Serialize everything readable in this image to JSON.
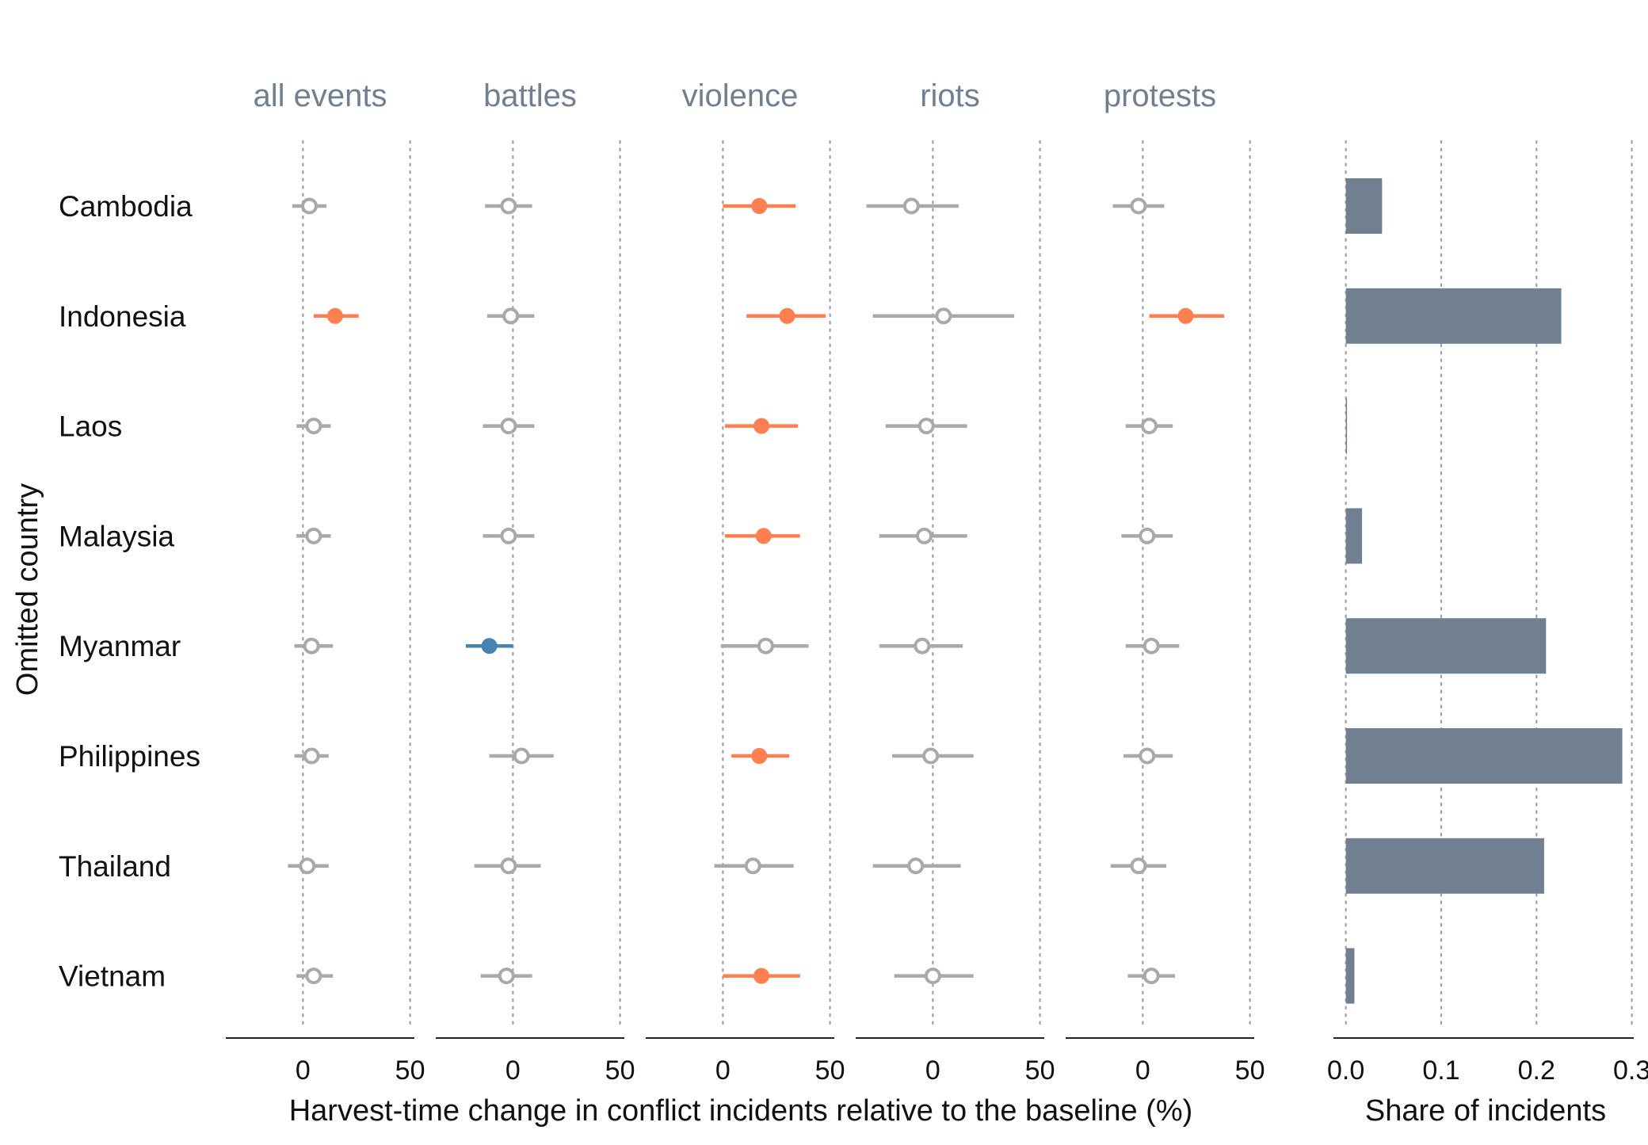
{
  "chart_data": [
    {
      "type": "scatter",
      "description_type": "dot-and-whisker",
      "xlabel": "Harvest-time change in conflict incidents relative to the baseline (%)",
      "ylabel": "Omitted country",
      "categories": [
        "Cambodia",
        "Indonesia",
        "Laos",
        "Malaysia",
        "Myanmar",
        "Philippines",
        "Thailand",
        "Vietnam"
      ],
      "xticks": [
        "0",
        "50"
      ],
      "xtick_values": [
        0,
        50
      ],
      "xlim": [
        -36,
        52
      ],
      "grid": "dotted vertical at 0 and 50",
      "colors": {
        "not_significant": "#A9A9A9",
        "positive_significant": "#FF7F50",
        "negative_significant": "#4682B4",
        "panel_title": "#708090"
      },
      "panels": [
        {
          "title": "all events",
          "points": [
            {
              "country": "Cambodia",
              "estimate": 3,
              "low": -5,
              "high": 11,
              "status": "not_significant"
            },
            {
              "country": "Indonesia",
              "estimate": 15,
              "low": 5,
              "high": 26,
              "status": "positive_significant"
            },
            {
              "country": "Laos",
              "estimate": 5,
              "low": -3,
              "high": 13,
              "status": "not_significant"
            },
            {
              "country": "Malaysia",
              "estimate": 5,
              "low": -3,
              "high": 13,
              "status": "not_significant"
            },
            {
              "country": "Myanmar",
              "estimate": 4,
              "low": -4,
              "high": 14,
              "status": "not_significant"
            },
            {
              "country": "Philippines",
              "estimate": 4,
              "low": -4,
              "high": 12,
              "status": "not_significant"
            },
            {
              "country": "Thailand",
              "estimate": 2,
              "low": -7,
              "high": 12,
              "status": "not_significant"
            },
            {
              "country": "Vietnam",
              "estimate": 5,
              "low": -3,
              "high": 14,
              "status": "not_significant"
            }
          ]
        },
        {
          "title": "battles",
          "points": [
            {
              "country": "Cambodia",
              "estimate": -2,
              "low": -13,
              "high": 9,
              "status": "not_significant"
            },
            {
              "country": "Indonesia",
              "estimate": -1,
              "low": -12,
              "high": 10,
              "status": "not_significant"
            },
            {
              "country": "Laos",
              "estimate": -2,
              "low": -14,
              "high": 10,
              "status": "not_significant"
            },
            {
              "country": "Malaysia",
              "estimate": -2,
              "low": -14,
              "high": 10,
              "status": "not_significant"
            },
            {
              "country": "Myanmar",
              "estimate": -11,
              "low": -22,
              "high": 0,
              "status": "negative_significant"
            },
            {
              "country": "Philippines",
              "estimate": 4,
              "low": -11,
              "high": 19,
              "status": "not_significant"
            },
            {
              "country": "Thailand",
              "estimate": -2,
              "low": -18,
              "high": 13,
              "status": "not_significant"
            },
            {
              "country": "Vietnam",
              "estimate": -3,
              "low": -15,
              "high": 9,
              "status": "not_significant"
            }
          ]
        },
        {
          "title": "violence",
          "points": [
            {
              "country": "Cambodia",
              "estimate": 17,
              "low": 0,
              "high": 34,
              "status": "positive_significant"
            },
            {
              "country": "Indonesia",
              "estimate": 30,
              "low": 11,
              "high": 48,
              "status": "positive_significant"
            },
            {
              "country": "Laos",
              "estimate": 18,
              "low": 1,
              "high": 35,
              "status": "positive_significant"
            },
            {
              "country": "Malaysia",
              "estimate": 19,
              "low": 1,
              "high": 36,
              "status": "positive_significant"
            },
            {
              "country": "Myanmar",
              "estimate": 20,
              "low": -1,
              "high": 40,
              "status": "not_significant"
            },
            {
              "country": "Philippines",
              "estimate": 17,
              "low": 4,
              "high": 31,
              "status": "positive_significant"
            },
            {
              "country": "Thailand",
              "estimate": 14,
              "low": -4,
              "high": 33,
              "status": "not_significant"
            },
            {
              "country": "Vietnam",
              "estimate": 18,
              "low": 0,
              "high": 36,
              "status": "positive_significant"
            }
          ]
        },
        {
          "title": "riots",
          "points": [
            {
              "country": "Cambodia",
              "estimate": -10,
              "low": -31,
              "high": 12,
              "status": "not_significant"
            },
            {
              "country": "Indonesia",
              "estimate": 5,
              "low": -28,
              "high": 38,
              "status": "not_significant"
            },
            {
              "country": "Laos",
              "estimate": -3,
              "low": -22,
              "high": 16,
              "status": "not_significant"
            },
            {
              "country": "Malaysia",
              "estimate": -4,
              "low": -25,
              "high": 16,
              "status": "not_significant"
            },
            {
              "country": "Myanmar",
              "estimate": -5,
              "low": -25,
              "high": 14,
              "status": "not_significant"
            },
            {
              "country": "Philippines",
              "estimate": -1,
              "low": -19,
              "high": 19,
              "status": "not_significant"
            },
            {
              "country": "Thailand",
              "estimate": -8,
              "low": -28,
              "high": 13,
              "status": "not_significant"
            },
            {
              "country": "Vietnam",
              "estimate": 0,
              "low": -18,
              "high": 19,
              "status": "not_significant"
            }
          ]
        },
        {
          "title": "protests",
          "points": [
            {
              "country": "Cambodia",
              "estimate": -2,
              "low": -14,
              "high": 10,
              "status": "not_significant"
            },
            {
              "country": "Indonesia",
              "estimate": 20,
              "low": 3,
              "high": 38,
              "status": "positive_significant"
            },
            {
              "country": "Laos",
              "estimate": 3,
              "low": -8,
              "high": 14,
              "status": "not_significant"
            },
            {
              "country": "Malaysia",
              "estimate": 2,
              "low": -10,
              "high": 14,
              "status": "not_significant"
            },
            {
              "country": "Myanmar",
              "estimate": 4,
              "low": -8,
              "high": 17,
              "status": "not_significant"
            },
            {
              "country": "Philippines",
              "estimate": 2,
              "low": -9,
              "high": 14,
              "status": "not_significant"
            },
            {
              "country": "Thailand",
              "estimate": -2,
              "low": -15,
              "high": 11,
              "status": "not_significant"
            },
            {
              "country": "Vietnam",
              "estimate": 4,
              "low": -7,
              "high": 15,
              "status": "not_significant"
            }
          ]
        }
      ]
    },
    {
      "type": "bar",
      "orientation": "horizontal",
      "xlabel": "Share of incidents",
      "categories": [
        "Cambodia",
        "Indonesia",
        "Laos",
        "Malaysia",
        "Myanmar",
        "Philippines",
        "Thailand",
        "Vietnam"
      ],
      "values": [
        0.038,
        0.226,
        0.001,
        0.017,
        0.21,
        0.29,
        0.208,
        0.009
      ],
      "xticks": [
        "0.0",
        "0.1",
        "0.2",
        "0.3"
      ],
      "xtick_values": [
        0.0,
        0.1,
        0.2,
        0.3
      ],
      "xlim": [
        -0.013,
        0.302
      ],
      "grid": "dotted vertical at ticks",
      "bar_color": "#708090"
    }
  ]
}
